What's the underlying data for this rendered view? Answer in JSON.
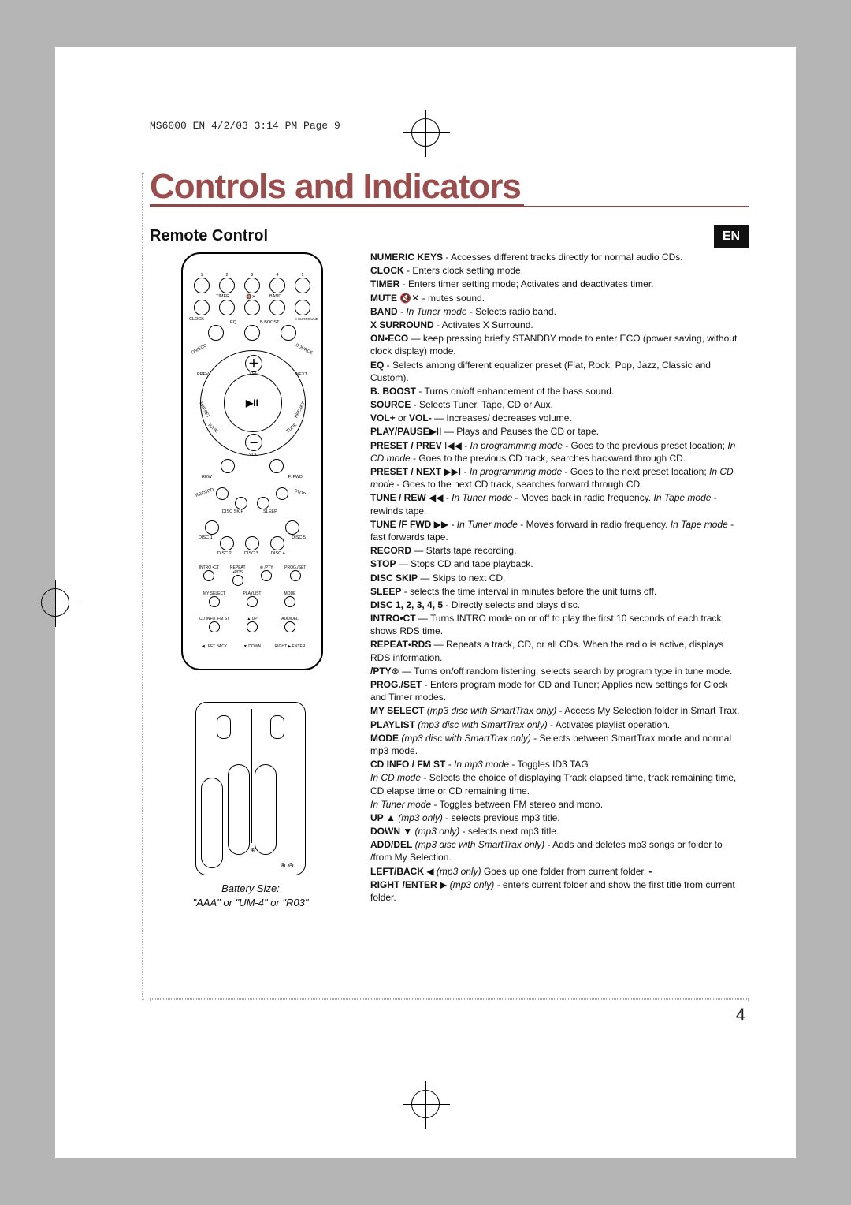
{
  "header": {
    "running": "MS6000 EN  4/2/03  3:14 PM  Page 9"
  },
  "title": "Controls and Indicators",
  "subtitle": "Remote Control",
  "lang_badge": "EN",
  "page_number": "4",
  "remote": {
    "num_row1": [
      "1",
      "2",
      "3",
      "4",
      "5"
    ],
    "row2_labels": [
      "CLOCK",
      "TIMER",
      "🔇✕",
      "BAND",
      "X SURROUND"
    ],
    "row3_labels": [
      "ON/ECO",
      "EQ",
      "B.BOOST",
      "SOURCE"
    ],
    "vol_plus": "＋",
    "vol_minus": "−",
    "nav_labels": [
      "PREV",
      "VOL",
      "NEXT",
      "PRESET",
      "TUNE",
      "PRESET",
      "TUNE"
    ],
    "play": "▶II",
    "bottom_row_labels": [
      "REW",
      "VOL",
      "F. FWD"
    ],
    "trio_labels": [
      "RECORD",
      "DISC SKIP",
      "SLEEP",
      "STOP"
    ],
    "disc_labels": [
      "DISC 1",
      "DISC 2",
      "DISC 3",
      "DISC 4",
      "DISC 5"
    ],
    "grid_labels": [
      "INTRO •CT",
      "REPEAT •RDS",
      "⊛ /PTY",
      "PROG./SET",
      "MY SELECT",
      "PLAYLIST",
      "MODE",
      "CD INFO /FM ST",
      "▲ UP",
      "ADD/DEL",
      "◀ LEFT BACK",
      "▼ DOWN",
      "RIGHT ▶ ENTER"
    ]
  },
  "battery": {
    "title": "Battery Size:",
    "spec": "\"AAA\" or \"UM-4\" or \"R03\""
  },
  "descriptions": [
    {
      "term": "NUMERIC KEYS",
      "text": " -  Accesses different tracks directly for normal audio CDs."
    },
    {
      "term": "CLOCK",
      "text": " - Enters clock setting mode."
    },
    {
      "term": "TIMER",
      "text": " - Enters timer setting mode; Activates and deactivates timer."
    },
    {
      "term": "MUTE",
      "glyph": " 🔇✕ ",
      "text": " - mutes sound."
    },
    {
      "term": "BAND",
      "italic": " - In Tuner mode",
      "text": " - Selects radio band."
    },
    {
      "term": "X SURROUND",
      "text": "  - Activates X Surround."
    },
    {
      "term": "ON•ECO",
      "text": " — keep pressing briefly STANDBY mode to enter ECO (power saving, without clock display) mode."
    },
    {
      "term": "EQ",
      "text": " - Selects among different equalizer preset (Flat, Rock, Pop, Jazz, Classic and Custom)."
    },
    {
      "term": "B. BOOST",
      "text": " - Turns on/off enhancement  of the bass sound."
    },
    {
      "term": "SOURCE",
      "text": " - Selects Tuner, Tape, CD or Aux."
    },
    {
      "term": "VOL+",
      "text": " or ",
      "term2": "VOL-",
      "text2": " — Increases/ decreases volume."
    },
    {
      "glyph": "▶II ",
      "term": "PLAY/PAUSE",
      "text": " — Plays and Pauses the CD or tape."
    },
    {
      "term": "PRESET / PREV",
      "glyph": "  I◀◀  ",
      "italic": " -  In programming mode",
      "text": " - Goes to the previous preset location;  ",
      "italic2": "In CD mode",
      "text2": " - Goes to the previous CD track, searches backward through CD."
    },
    {
      "term": "PRESET / NEXT",
      "glyph": "  ▶▶I  ",
      "italic": " - In programming mode",
      "text": " - Goes to the next preset location; ",
      "italic2": "In CD  mode",
      "text2": " - Goes to the next CD track,  searches forward through CD."
    },
    {
      "term": "TUNE / REW",
      "glyph": " ◀◀   ",
      "italic": " - In Tuner mode",
      "text": " - Moves back in radio frequency. ",
      "italic2": "In Tape mode",
      "text2": " - rewinds tape."
    },
    {
      "term": "TUNE /F FWD",
      "glyph": " ▶▶    ",
      "italic": " - In Tuner mode",
      "text": " - Moves forward in radio frequency. ",
      "italic2": "In Tape mode",
      "text2": " - fast forwards tape."
    },
    {
      "term": "RECORD",
      "text": " — Starts tape recording."
    },
    {
      "term": "STOP",
      "text": " — Stops CD and tape playback."
    },
    {
      "term": "DISC SKIP",
      "text": " — Skips to next CD."
    },
    {
      "term": "SLEEP",
      "text": " - selects the time interval in minutes before the unit turns off."
    },
    {
      "term": "DISC 1, 2, 3, 4, 5",
      "text": " - Directly selects and plays disc."
    },
    {
      "term": "INTRO•CT",
      "text": " — Turns INTRO mode on or off to play the first 10 seconds of each track, shows RDS time."
    },
    {
      "term": "REPEAT•RDS",
      "text": " — Repeats a track, CD, or all CDs. When the radio is active, displays RDS information."
    },
    {
      "glyph": "⊛ ",
      "term": "/PTY",
      "text": " — Turns on/off random listening, selects search  by program type in tune mode."
    },
    {
      "term": "PROG./SET",
      "text": " - Enters program mode for CD and Tuner; Applies new settings for Clock and Timer modes."
    },
    {
      "term": "MY SELECT",
      "italic": "  (mp3 disc with SmartTrax only)",
      "text": " - Access My Selection folder in Smart Trax."
    },
    {
      "term": "PLAYLIST",
      "italic": " (mp3 disc with SmartTrax only)",
      "text": " - Activates playlist operation."
    },
    {
      "term": "MODE",
      "italic": " (mp3 disc with SmartTrax only)",
      "text": " - Selects between SmartTrax mode and normal mp3 mode."
    },
    {
      "term": "CD INFO / FM ST",
      "italic": " -  In mp3 mode",
      "text": " - Toggles ID3 TAG"
    },
    {
      "italic": "In CD mode",
      "text": " - Selects the choice of displaying Track elapsed time, track remaining time, CD elapse time  or CD remaining time."
    },
    {
      "italic": "In Tuner mode",
      "text": " - Toggles between FM stereo and mono."
    },
    {
      "term": "UP",
      "glyph": "   ▲   ",
      "italic": "(mp3 only)",
      "text": " -  selects previous mp3 title."
    },
    {
      "term": "DOWN",
      "glyph": "    ▼    ",
      "italic": "(mp3 only)",
      "text": " - selects next mp3 title."
    },
    {
      "term": "ADD/DEL",
      "italic": "  (mp3 disc with SmartTrax only)",
      "text": "  - Adds and deletes mp3 songs or folder to /from My Selection."
    },
    {
      "term": "LEFT/BACK",
      "glyph": "   ◀  ",
      "italic": "(mp3 only)",
      "term2": " - ",
      "text": " Goes up one folder from current folder."
    },
    {
      "term": "RIGHT /ENTER",
      "glyph": "  ▶ ",
      "italic": "(mp3 only)",
      "text": " - enters current folder and show the first title from current folder."
    }
  ],
  "colors": {
    "title_color": "#9a4d4d",
    "rule_color": "#8b4b4b",
    "page_bg": "#ffffff",
    "outer_bg": "#b5b5b5",
    "badge_bg": "#111111",
    "text": "#111111"
  }
}
